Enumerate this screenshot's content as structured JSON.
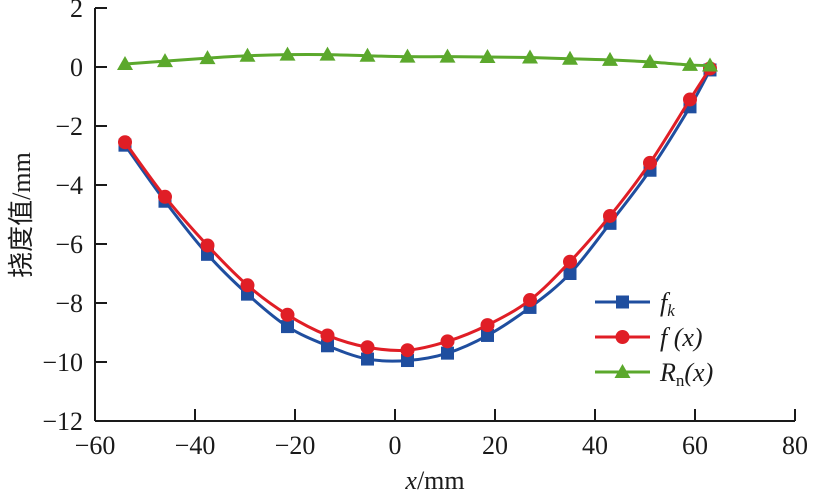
{
  "chart_data": {
    "type": "line",
    "title": "",
    "xlabel_italic": "x",
    "xlabel_unit": "/mm",
    "ylabel": "挠度值/mm",
    "xlim": [
      -60,
      80
    ],
    "ylim": [
      -12,
      2
    ],
    "xticks": [
      "−60",
      "−40",
      "−20",
      "0",
      "20",
      "40",
      "60",
      "80"
    ],
    "xtick_values": [
      -60,
      -40,
      -20,
      0,
      20,
      40,
      60,
      80
    ],
    "yticks": [
      "2",
      "0",
      "−2",
      "−4",
      "−6",
      "−8",
      "−10",
      "−12"
    ],
    "ytick_values": [
      2,
      0,
      -2,
      -4,
      -6,
      -8,
      -10,
      -12
    ],
    "grid": false,
    "legend_position": "bottom-right",
    "x": [
      -54,
      -46,
      -37.5,
      -29.5,
      -21.5,
      -13.5,
      -5.5,
      2.5,
      10.5,
      18.5,
      27,
      35,
      43,
      51,
      59,
      63
    ],
    "series": [
      {
        "name": "f_k",
        "legend_main": "f",
        "legend_sub": "k",
        "color": "#1f4e9f",
        "marker": "square",
        "values": [
          -2.65,
          -4.55,
          -6.35,
          -7.7,
          -8.8,
          -9.45,
          -9.9,
          -9.95,
          -9.7,
          -9.1,
          -8.15,
          -7.0,
          -5.3,
          -3.5,
          -1.35,
          -0.1
        ]
      },
      {
        "name": "f(x)",
        "legend_main": "f (x)",
        "legend_sub": "",
        "color": "#e01e26",
        "marker": "circle",
        "values": [
          -2.55,
          -4.4,
          -6.05,
          -7.4,
          -8.4,
          -9.1,
          -9.5,
          -9.6,
          -9.3,
          -8.75,
          -7.9,
          -6.6,
          -5.05,
          -3.25,
          -1.1,
          -0.05
        ]
      },
      {
        "name": "R_n(x)",
        "legend_main": "R",
        "legend_sub": "n",
        "legend_tail": "(x)",
        "color": "#5ba82c",
        "marker": "triangle",
        "values": [
          0.1,
          0.2,
          0.3,
          0.38,
          0.42,
          0.42,
          0.38,
          0.35,
          0.35,
          0.34,
          0.32,
          0.28,
          0.24,
          0.17,
          0.07,
          0.05
        ]
      }
    ]
  }
}
